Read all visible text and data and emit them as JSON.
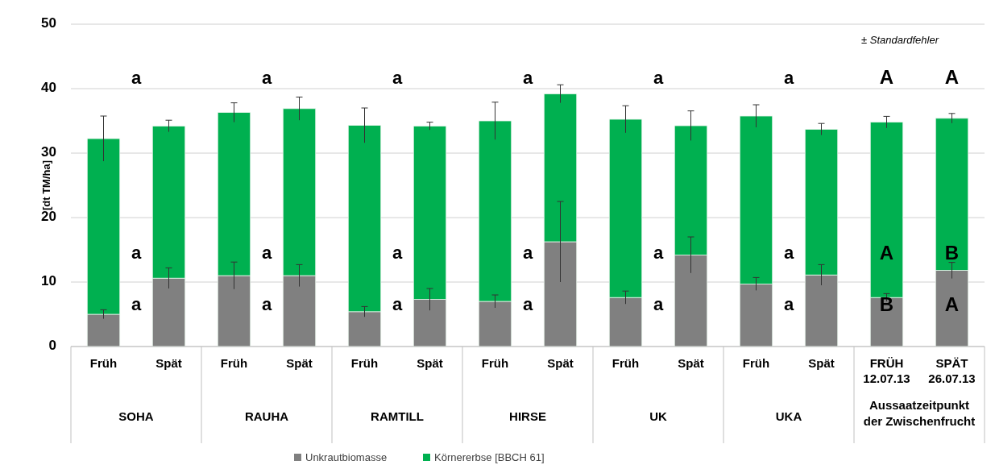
{
  "chart_data": {
    "type": "bar",
    "stacked": true,
    "ylabel": "[dt TM/ha]",
    "categories": [
      "Früh",
      "Spät",
      "Früh",
      "Spät",
      "Früh",
      "Spät",
      "Früh",
      "Spät",
      "Früh",
      "Spät",
      "Früh",
      "Spät",
      "FRÜH\n12.07.13",
      "SPÄT\n26.07.13"
    ],
    "series": [
      {
        "name": "Unkrautbiomasse",
        "color": "#808080",
        "values": [
          5.0,
          10.6,
          11.0,
          11.0,
          5.4,
          7.3,
          7.0,
          16.25,
          7.6,
          14.2,
          9.7,
          11.1,
          7.6,
          11.8
        ],
        "errors": [
          0.7,
          1.6,
          2.1,
          1.7,
          0.8,
          1.7,
          1.0,
          6.25,
          1.0,
          2.8,
          1.0,
          1.6,
          0.6,
          1.25
        ]
      },
      {
        "name": "Körnererbse [BBCH 61]",
        "color": "#00b050",
        "values": [
          27.25,
          23.6,
          25.3,
          25.9,
          28.9,
          26.9,
          28.0,
          22.95,
          27.65,
          20.05,
          26.05,
          22.6,
          27.2,
          23.6
        ],
        "errors": [
          3.5,
          0.9,
          1.5,
          1.8,
          2.7,
          0.6,
          2.9,
          1.4,
          2.1,
          2.3,
          1.75,
          0.9,
          0.9,
          0.75
        ]
      }
    ],
    "ylim": [
      0,
      50
    ],
    "yticks": [
      0,
      10,
      20,
      30,
      40,
      50
    ],
    "grid": "y",
    "legend": "bottom",
    "annotations": [
      "± Standardfehler",
      "SOHA",
      "RAUHA",
      "RAMTILL",
      "HIRSE",
      "UK",
      "UKA",
      "Aussaatzeitpunkt der Zwischenfrucht",
      "a",
      "a",
      "a",
      "a",
      "a",
      "a",
      "a",
      "a",
      "a",
      "a",
      "a",
      "a",
      "a",
      "a",
      "a",
      "a",
      "a",
      "a",
      "A",
      "A",
      "B",
      "A",
      "B",
      "A"
    ]
  }
}
